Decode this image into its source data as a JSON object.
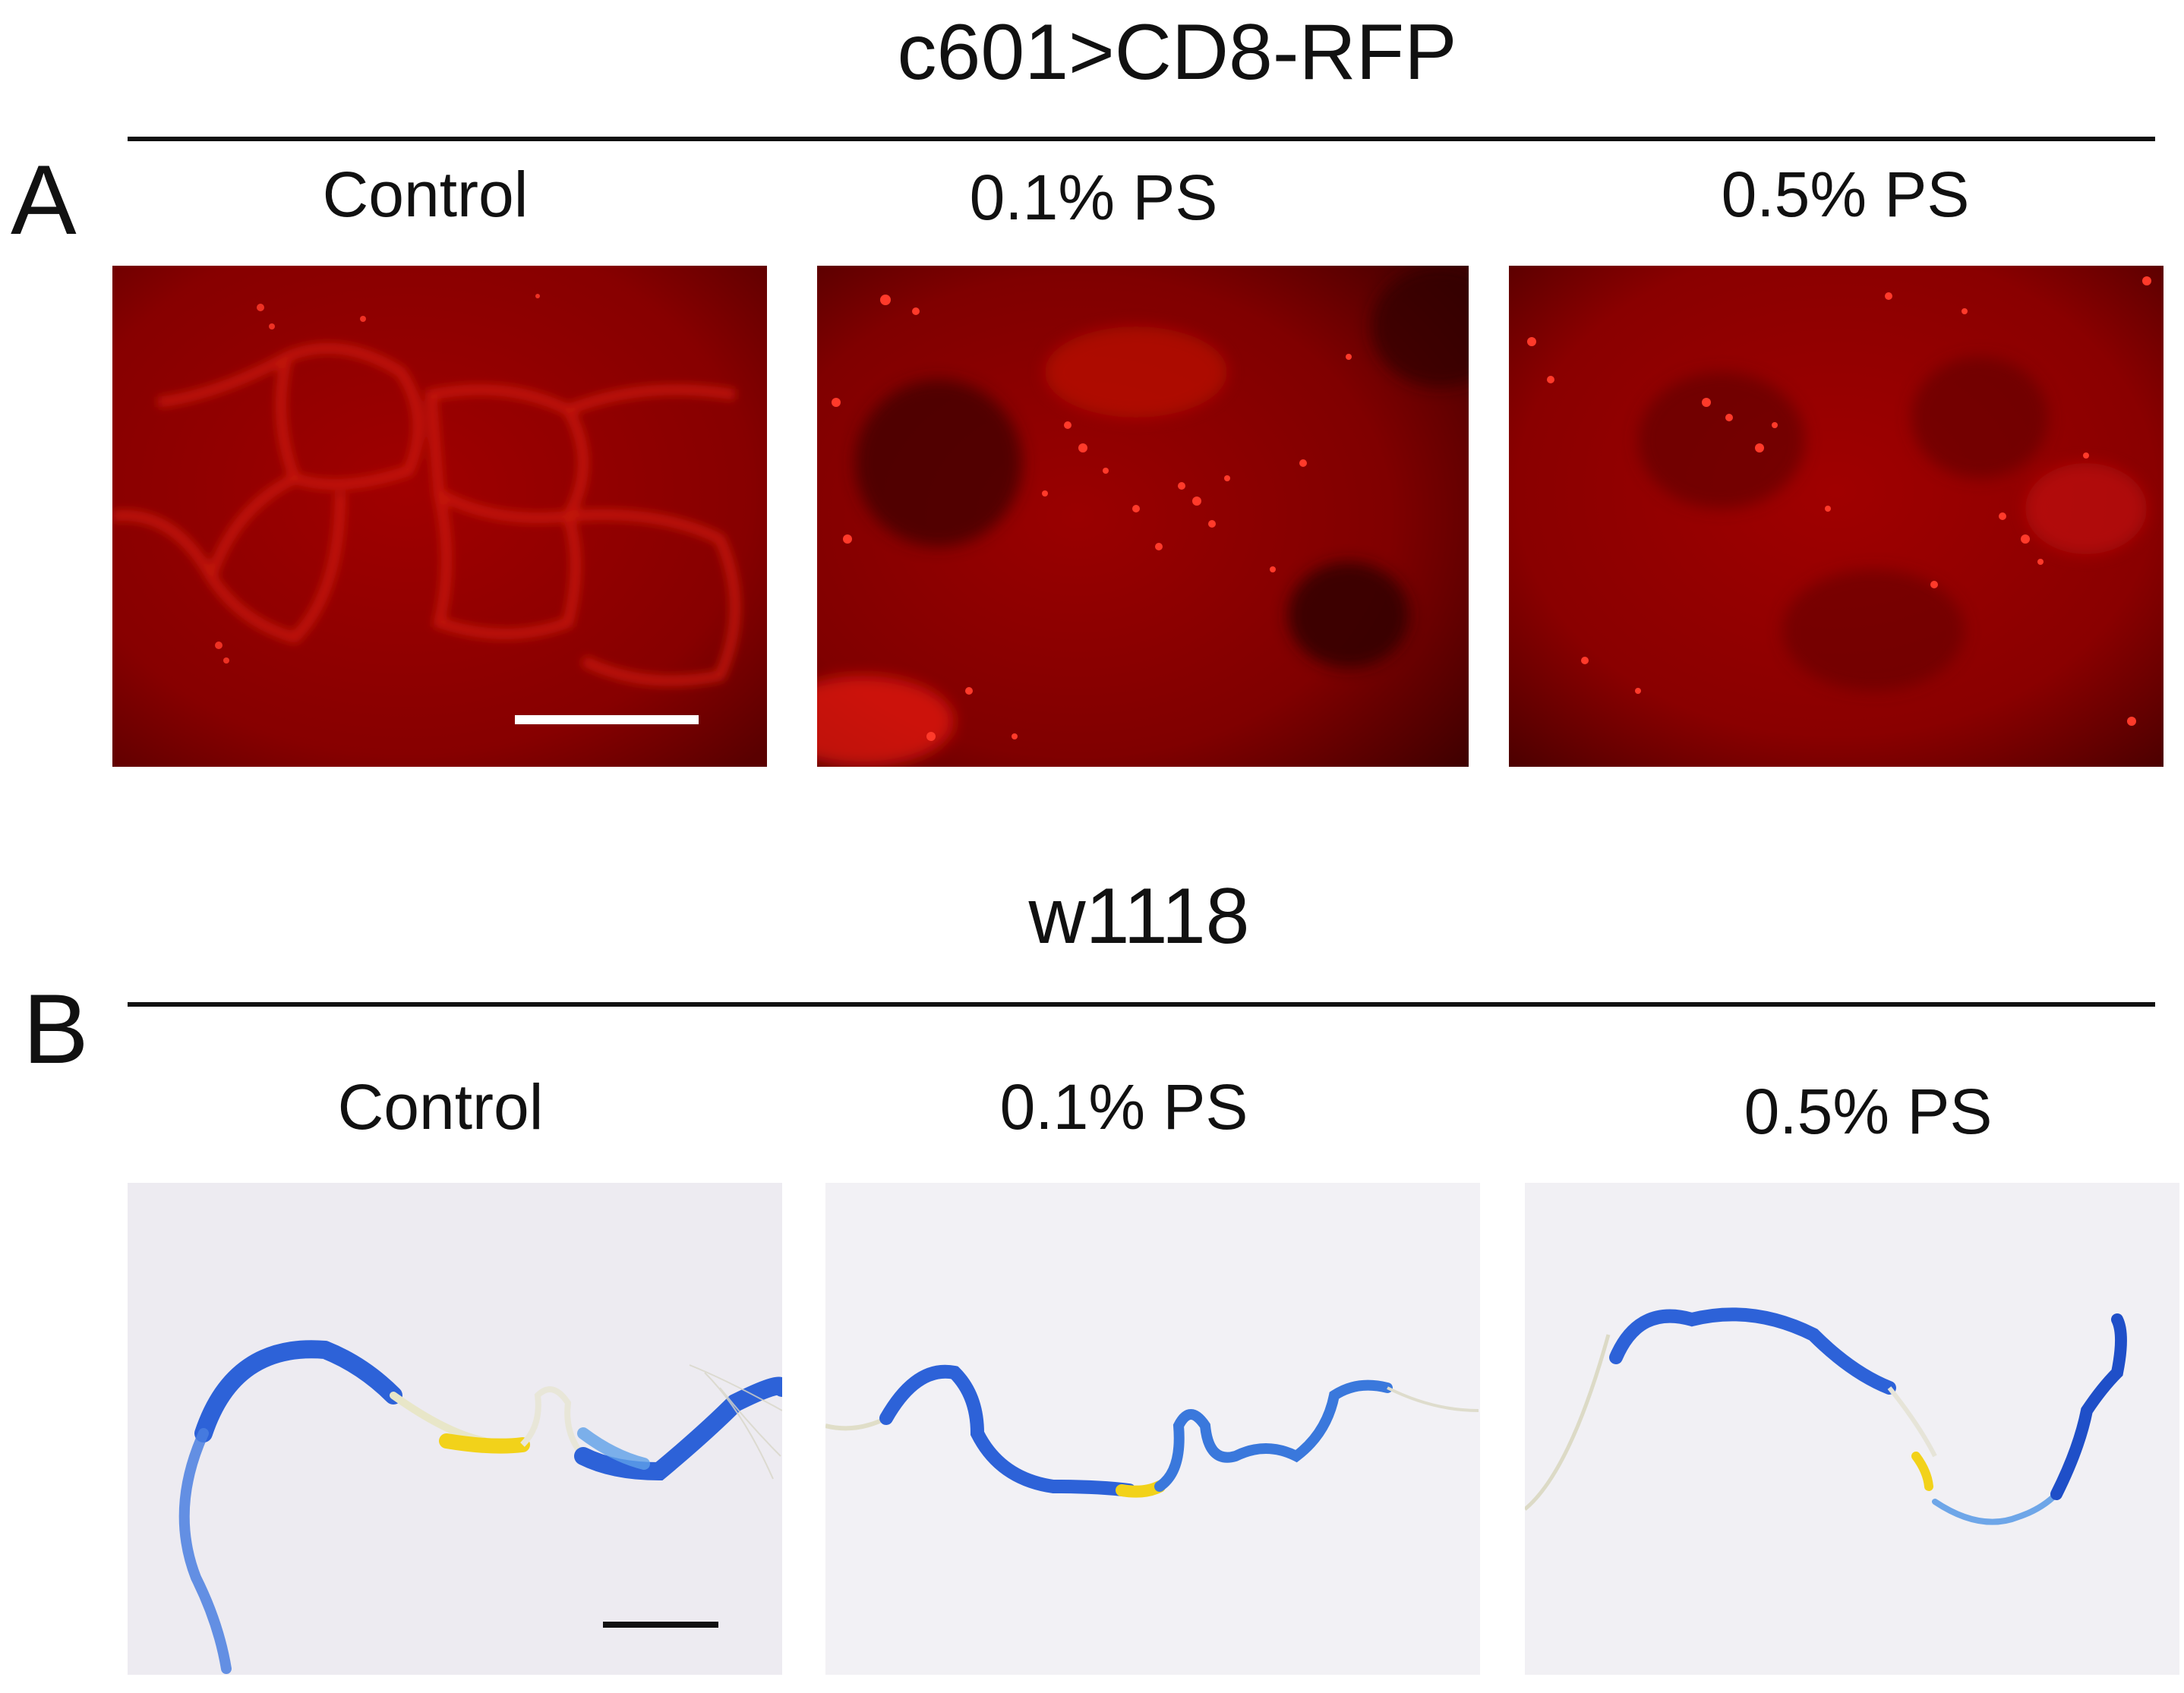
{
  "section_a": {
    "letter": "A",
    "title": "c601>CD8-RFP",
    "columns": [
      "Control",
      "0.1% PS",
      "0.5% PS"
    ]
  },
  "section_b": {
    "letter": "B",
    "title": "w1118",
    "columns": [
      "Control",
      "0.1% PS",
      "0.5% PS"
    ]
  },
  "colors": {
    "fluorescence_bg": "#8a0000",
    "fluorescence_bright": "#ff2a1a",
    "stain_blue": "#1f5fcf",
    "stain_yellow": "#f2d21a",
    "brightfield_bg": "#f1f0f4",
    "scale_bar_light": "#ffffff",
    "scale_bar_dark": "#111111"
  }
}
